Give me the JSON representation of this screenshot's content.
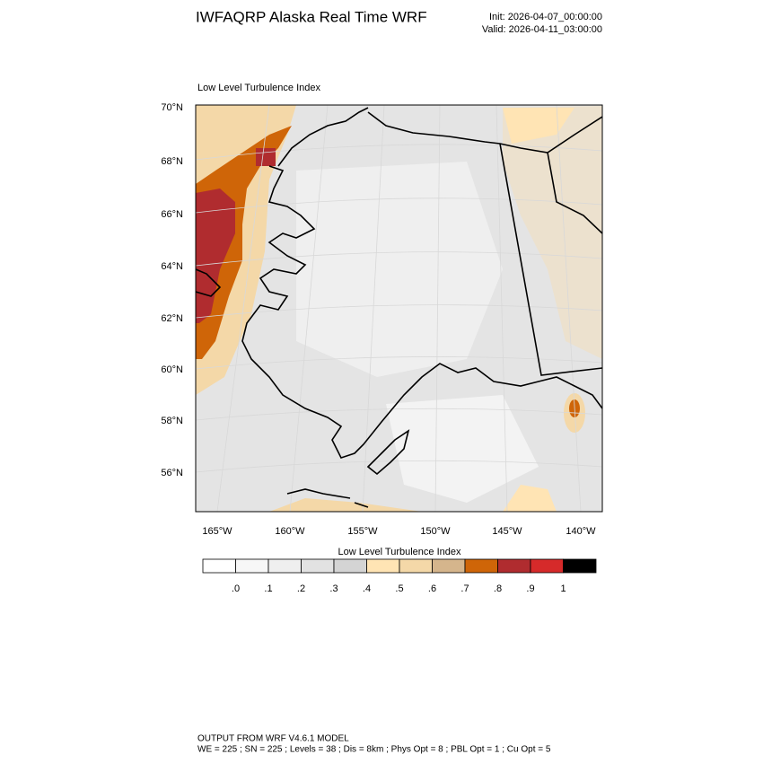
{
  "header": {
    "title": "IWFAQRP Alaska Real Time WRF",
    "init": "Init: 2026-04-07_00:00:00",
    "valid": "Valid: 2026-04-11_03:00:00"
  },
  "map": {
    "title": "Low Level Turbulence Index",
    "lat_labels": [
      "70°N",
      "68°N",
      "66°N",
      "64°N",
      "62°N",
      "60°N",
      "58°N",
      "56°N"
    ],
    "lon_labels": [
      "165°W",
      "160°W",
      "155°W",
      "150°W",
      "145°W",
      "140°W"
    ]
  },
  "colorbar": {
    "title": "Low Level Turbulence Index",
    "colors": [
      "#ffffff",
      "#f7f7f7",
      "#efefef",
      "#e2e2e2",
      "#d4d4d4",
      "#ffe4b4",
      "#f4d8a8",
      "#d5b58c",
      "#cf6508",
      "#b02c2f",
      "#d62a2a",
      "#000000"
    ],
    "labels": [
      ".0",
      ".1",
      ".2",
      ".3",
      ".4",
      ".5",
      ".6",
      ".7",
      ".8",
      ".9",
      "1"
    ]
  },
  "footer": {
    "lines": [
      "OUTPUT FROM WRF V4.6.1 MODEL",
      "WE = 225 ; SN = 225 ; Levels = 38 ; Dis = 8km ; Phys Opt = 8 ; PBL Opt = 1 ; Cu Opt = 5"
    ]
  }
}
